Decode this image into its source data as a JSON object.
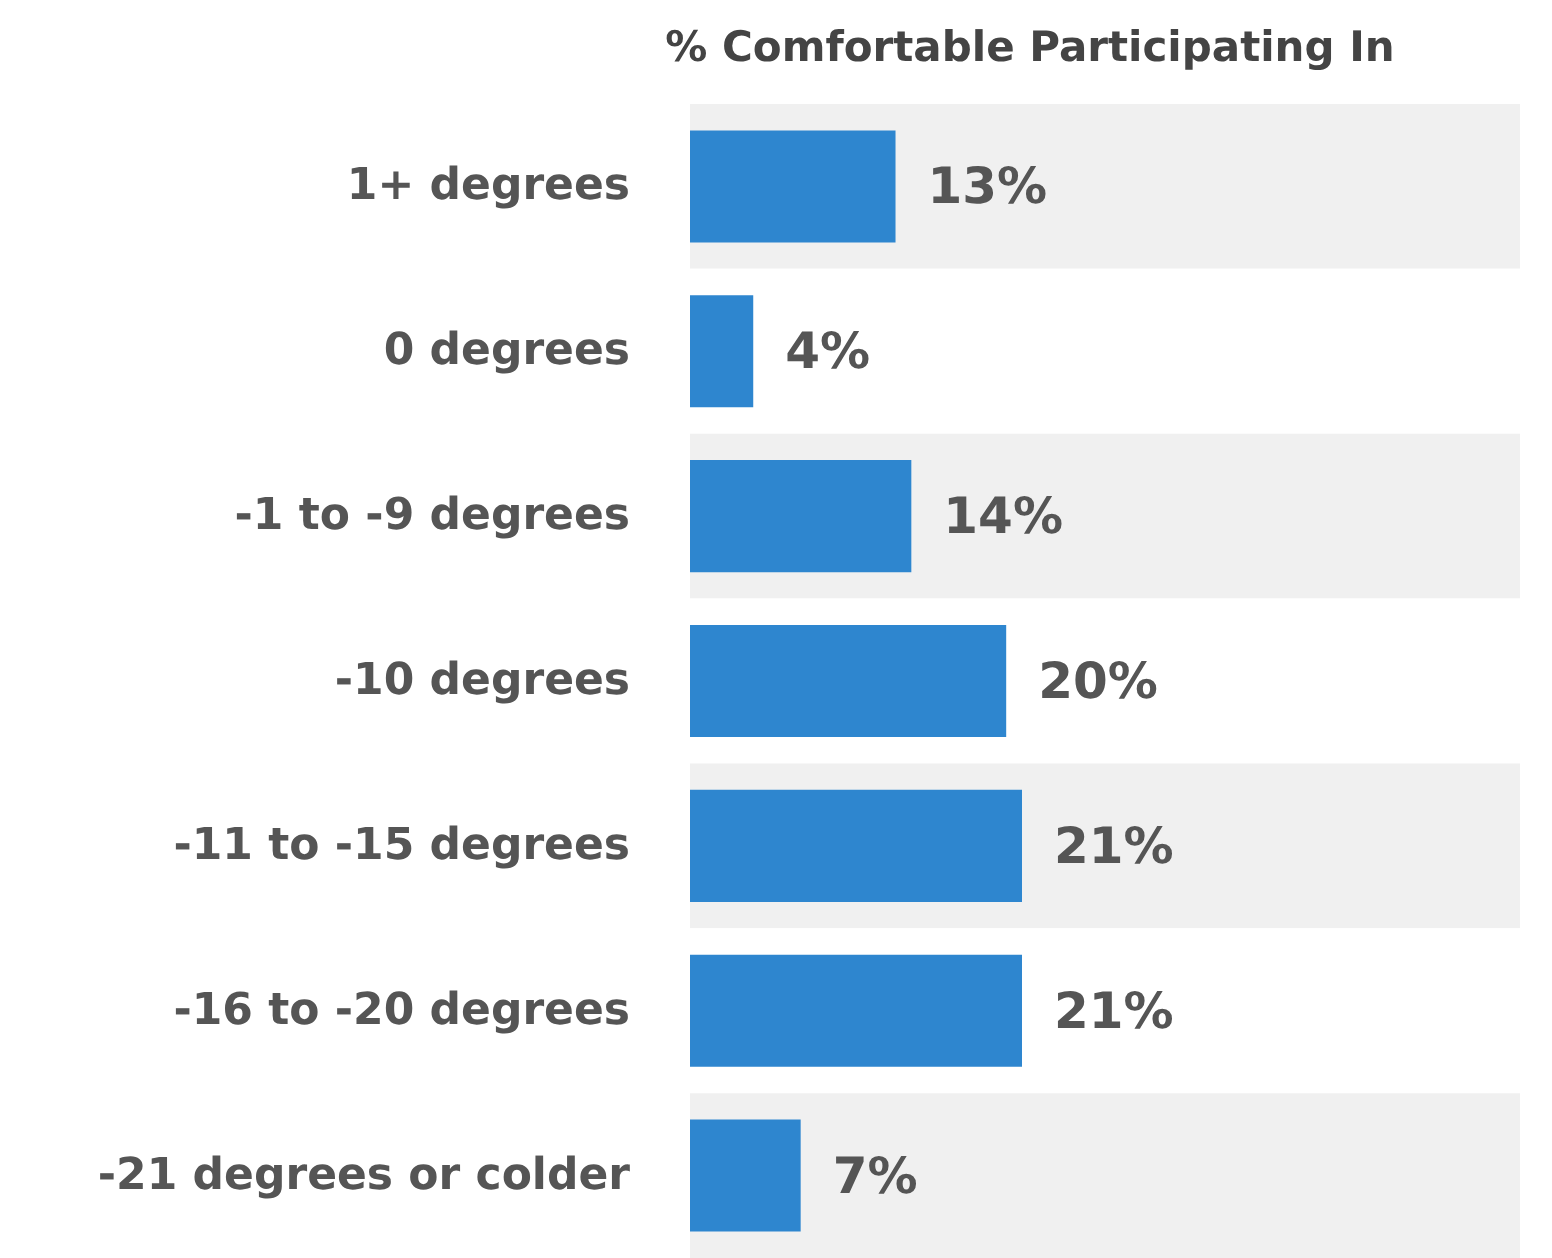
{
  "chart_data": {
    "type": "bar",
    "orientation": "horizontal",
    "title": "% Comfortable Participating In",
    "categories": [
      "1+ degrees",
      "0 degrees",
      "-1 to -9 degrees",
      "-10 degrees",
      "-11 to -15 degrees",
      "-16 to -20 degrees",
      "-21 degrees or colder"
    ],
    "values": [
      13,
      4,
      14,
      20,
      21,
      21,
      7
    ],
    "value_labels": [
      "13%",
      "4%",
      "14%",
      "20%",
      "21%",
      "21%",
      "7%"
    ],
    "color": "#2e86cf",
    "grid": false,
    "tick_labels": "y"
  }
}
